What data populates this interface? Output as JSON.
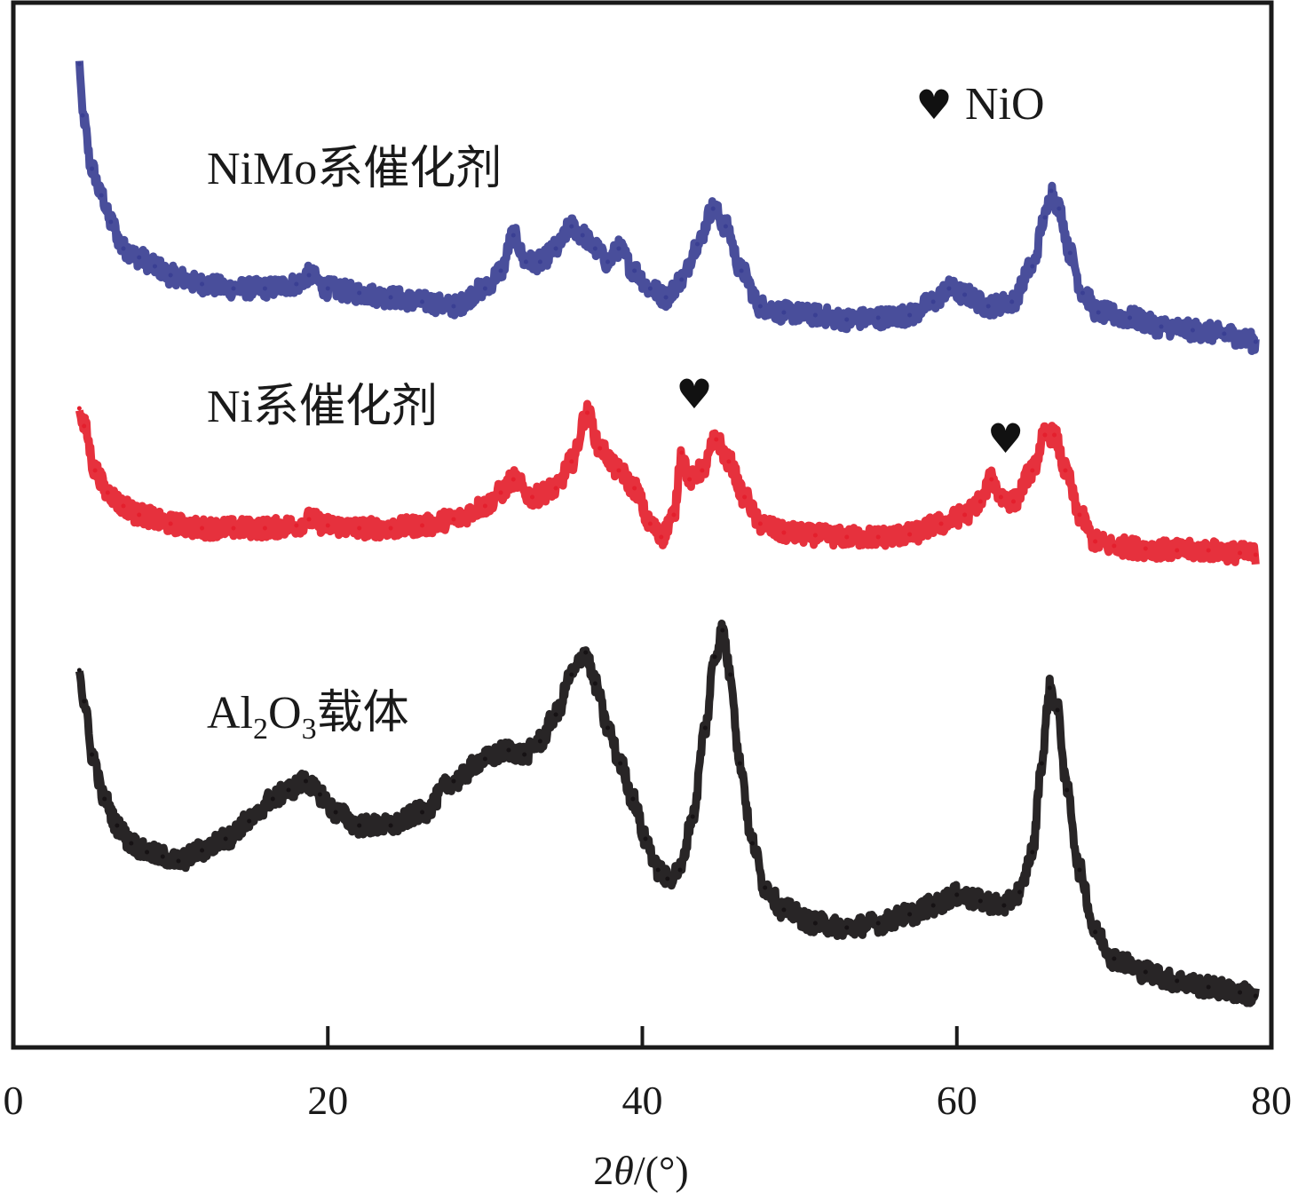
{
  "chart_data": {
    "type": "line",
    "title": "",
    "xlabel": "2θ/(°)",
    "xlabel_parts": {
      "prefix": "2",
      "italic": "θ",
      "suffix": "/(°)"
    },
    "ylabel": "",
    "xlim": [
      0,
      80
    ],
    "ylim": [
      0,
      1178
    ],
    "y_units": "relative intensity (a.u., stacked/offset)",
    "x_ticks": [
      0,
      20,
      40,
      60,
      80
    ],
    "x_tick_labels": [
      "0",
      "20",
      "40",
      "60",
      "80"
    ],
    "y_ticks_shown": false,
    "grid": false,
    "legend": "none (inline labels)",
    "series": [
      {
        "name": "NiMo系催化剂",
        "label_main": "NiMo系催化剂",
        "color": "#3a3f93",
        "x": [
          4.2,
          4.4,
          5.0,
          5.6,
          6.2,
          7.0,
          8.0,
          9.0,
          10.0,
          12.0,
          14.0,
          16.0,
          18.0,
          18.8,
          20.0,
          22.0,
          24.0,
          26.0,
          28.0,
          30.0,
          31.0,
          31.8,
          32.6,
          33.5,
          34.5,
          35.5,
          36.2,
          37.0,
          37.8,
          38.5,
          39.5,
          40.5,
          41.5,
          42.5,
          43.5,
          44.5,
          45.3,
          46.3,
          47.5,
          49.0,
          51.0,
          53.0,
          55.0,
          57.0,
          58.5,
          59.5,
          60.5,
          62.0,
          63.5,
          64.8,
          65.6,
          66.0,
          66.5,
          67.2,
          68.0,
          69.0,
          71.0,
          73.0,
          75.0,
          77.0,
          79.0
        ],
        "y": [
          1108,
          1050,
          990,
          960,
          930,
          900,
          890,
          880,
          870,
          860,
          855,
          855,
          860,
          870,
          855,
          850,
          845,
          840,
          835,
          855,
          875,
          915,
          885,
          885,
          900,
          925,
          915,
          900,
          885,
          900,
          875,
          855,
          845,
          865,
          905,
          945,
          925,
          875,
          835,
          828,
          825,
          820,
          822,
          825,
          840,
          855,
          848,
          835,
          840,
          880,
          935,
          965,
          945,
          895,
          850,
          828,
          822,
          812,
          808,
          804,
          795
        ]
      },
      {
        "name": "Ni系催化剂",
        "label_main": "Ni系催化剂",
        "color": "#e41f2d",
        "x": [
          4.2,
          4.5,
          5.2,
          6.0,
          7.0,
          8.0,
          10.0,
          12.0,
          14.0,
          16.0,
          18.0,
          18.8,
          20.0,
          22.0,
          24.0,
          26.0,
          28.0,
          30.0,
          31.0,
          31.8,
          33.0,
          34.5,
          35.5,
          36.5,
          37.3,
          38.5,
          39.5,
          40.5,
          41.2,
          42.0,
          42.5,
          43.0,
          43.8,
          44.7,
          45.5,
          46.5,
          47.5,
          49.0,
          51.0,
          53.0,
          55.0,
          57.0,
          59.0,
          60.5,
          61.5,
          62.2,
          62.8,
          63.6,
          64.8,
          65.6,
          66.2,
          66.9,
          67.8,
          68.8,
          70.0,
          72.0,
          74.0,
          76.0,
          78.0,
          79.0
        ],
        "y": [
          720,
          700,
          650,
          625,
          610,
          600,
          590,
          585,
          585,
          585,
          588,
          595,
          588,
          585,
          585,
          588,
          595,
          610,
          625,
          640,
          620,
          630,
          660,
          715,
          675,
          650,
          630,
          590,
          575,
          600,
          670,
          640,
          650,
          685,
          660,
          620,
          590,
          580,
          577,
          575,
          575,
          578,
          590,
          600,
          615,
          640,
          620,
          615,
          650,
          690,
          690,
          650,
          600,
          570,
          565,
          562,
          560,
          560,
          557,
          555
        ]
      },
      {
        "name": "Al2O3载体",
        "label_main": "Al",
        "label_sub1": "2",
        "label_mid": "O",
        "label_sub2": "3",
        "label_tail": "载体",
        "color": "#161214",
        "x": [
          4.2,
          4.5,
          5.0,
          5.8,
          6.6,
          7.5,
          8.5,
          9.5,
          10.5,
          12.0,
          13.5,
          15.0,
          16.5,
          17.5,
          18.6,
          19.5,
          20.5,
          22.0,
          24.0,
          26.0,
          28.0,
          30.0,
          31.5,
          32.5,
          33.5,
          34.5,
          35.5,
          36.4,
          37.0,
          37.8,
          38.6,
          39.4,
          40.2,
          41.0,
          41.6,
          42.4,
          43.2,
          44.0,
          44.6,
          45.1,
          45.6,
          46.2,
          47.0,
          47.8,
          49.0,
          51.0,
          53.0,
          55.0,
          57.0,
          58.5,
          60.0,
          61.5,
          63.0,
          64.0,
          64.8,
          65.4,
          65.9,
          66.4,
          67.0,
          67.8,
          68.8,
          70.0,
          72.0,
          74.0,
          76.0,
          78.0,
          79.0
        ],
        "y": [
          425,
          390,
          330,
          280,
          250,
          230,
          220,
          215,
          210,
          222,
          235,
          255,
          280,
          290,
          300,
          285,
          265,
          250,
          250,
          265,
          300,
          325,
          335,
          330,
          345,
          375,
          420,
          445,
          410,
          360,
          320,
          280,
          235,
          200,
          190,
          200,
          260,
          360,
          440,
          470,
          420,
          320,
          230,
          180,
          155,
          140,
          135,
          140,
          150,
          160,
          172,
          165,
          160,
          175,
          220,
          320,
          405,
          380,
          290,
          200,
          130,
          100,
          85,
          75,
          68,
          62,
          58
        ]
      }
    ],
    "annotations": [
      {
        "type": "marker",
        "symbol": "♥",
        "meaning": "NiO",
        "x": 43.3,
        "series": "Ni系催化剂"
      },
      {
        "type": "marker",
        "symbol": "♥",
        "meaning": "NiO",
        "x": 63.1,
        "series": "Ni系催化剂"
      }
    ],
    "legend_entry": {
      "symbol": "♥",
      "text": "NiO"
    }
  }
}
